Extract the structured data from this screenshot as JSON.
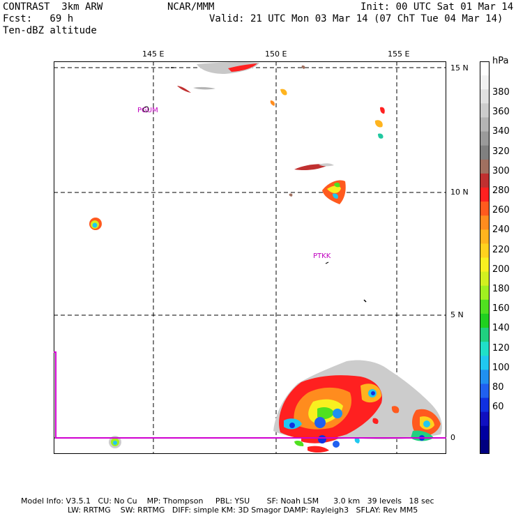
{
  "header": {
    "model": "CONTRAST  3km ARW",
    "forecast": "Fcst:   69 h",
    "field": "Ten-dBZ altitude",
    "center": "NCAR/MMM",
    "init": "Init: 00 UTC Sat 01 Mar 14",
    "valid": "Valid: 21 UTC Mon 03 Mar 14 (07 ChT Tue 04 Mar 14)"
  },
  "map": {
    "lon_labels": [
      "145 E",
      "150 E",
      "155 E"
    ],
    "lat_labels": [
      "15 N",
      "10 N",
      "5 N",
      "0"
    ],
    "stations": [
      "PGUM",
      "PTKK"
    ],
    "colors": {
      "frame": "#000000",
      "grid": "#000000",
      "boundary": "#d000d0",
      "station": "#c000c0"
    }
  },
  "colorbar": {
    "unit": "hPa",
    "ticks": [
      "380",
      "360",
      "340",
      "320",
      "300",
      "280",
      "260",
      "240",
      "220",
      "200",
      "180",
      "160",
      "140",
      "120",
      "100",
      "80",
      "60"
    ],
    "colors": [
      "#ffffff",
      "#f2f2f2",
      "#e0e0e0",
      "#cccccc",
      "#b4b4b4",
      "#9a9a9a",
      "#808080",
      "#a07060",
      "#c03030",
      "#ff2020",
      "#ff5a1e",
      "#ff8c1e",
      "#ffb41e",
      "#ffd21e",
      "#f8f020",
      "#d2f020",
      "#a0f020",
      "#50e020",
      "#20d020",
      "#20d080",
      "#20e0c8",
      "#20c8f0",
      "#2090f0",
      "#2060f0",
      "#1030e0",
      "#1010c0",
      "#0000a0",
      "#000080"
    ]
  },
  "footer": {
    "line1": "Model Info: V3.5.1   CU: No Cu    MP: Thompson     PBL: YSU       SF: Noah LSM      3.0 km   39 levels   18 sec",
    "line2": "LW: RRTMG    SW: RRTMG   DIFF: simple KM: 3D Smagor DAMP: Rayleigh3   SFLAY: Rev MM5"
  }
}
